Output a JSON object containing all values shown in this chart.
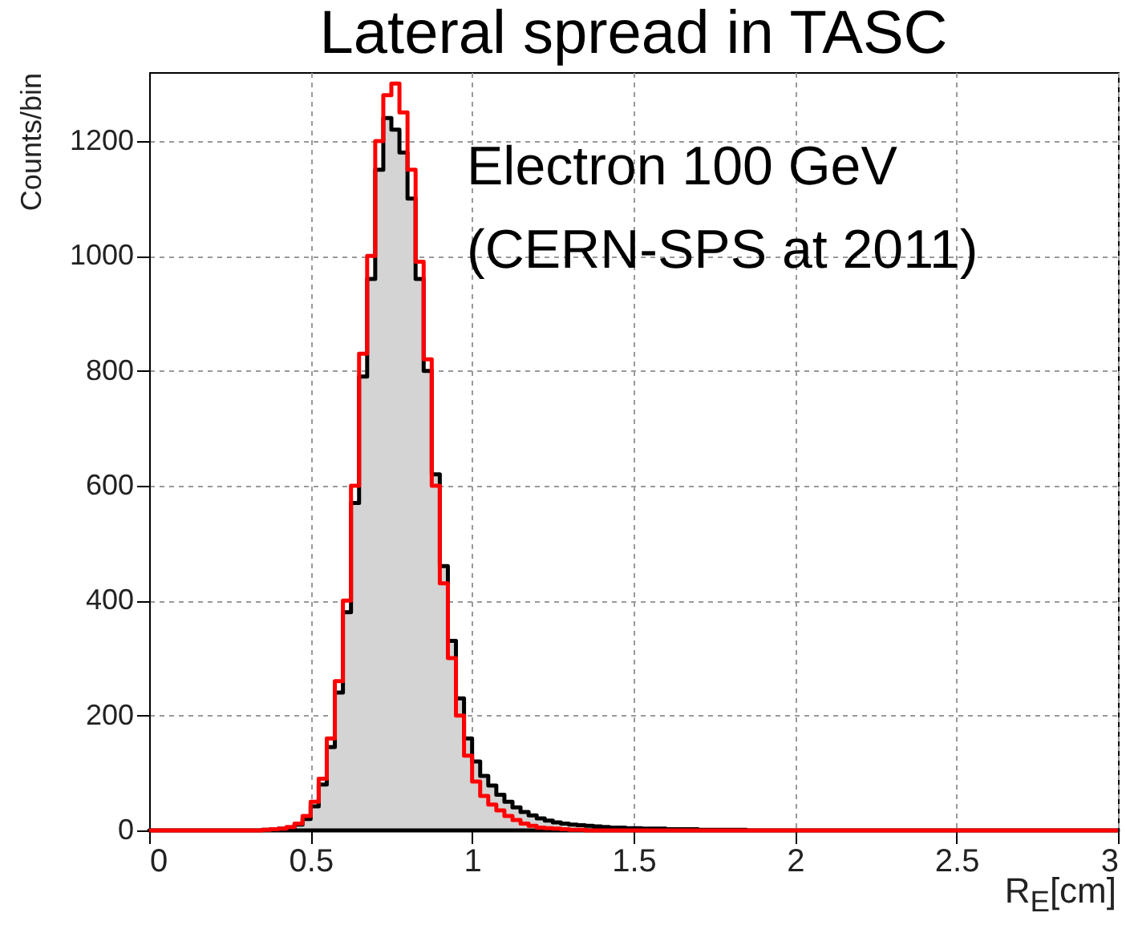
{
  "chart_data": {
    "type": "histogram",
    "title": "Lateral spread in TASC",
    "xlabel": "R$_{E}$[cm]",
    "ylabel": "Counts/bin",
    "annotations": [
      "Electron 100 GeV",
      "(CERN-SPS at 2011)"
    ],
    "bins": [
      0,
      0.025,
      0.05,
      0.075,
      0.1,
      0.125,
      0.15,
      0.175,
      0.2,
      0.225,
      0.25,
      0.275,
      0.3,
      0.325,
      0.35,
      0.375,
      0.4,
      0.425,
      0.45,
      0.475,
      0.5,
      0.525,
      0.55,
      0.575,
      0.6,
      0.625,
      0.65,
      0.675,
      0.7,
      0.725,
      0.75,
      0.775,
      0.8,
      0.825,
      0.85,
      0.875,
      0.9,
      0.925,
      0.95,
      0.975,
      1,
      1.025,
      1.05,
      1.075,
      1.1,
      1.125,
      1.15,
      1.175,
      1.2,
      1.225,
      1.25,
      1.275,
      1.3,
      1.325,
      1.35,
      1.375,
      1.4,
      1.425,
      1.45,
      1.475,
      1.5,
      1.525,
      1.55,
      1.575,
      1.6,
      1.625,
      1.65,
      1.675,
      1.7,
      1.725,
      1.75,
      1.775,
      1.8,
      1.825,
      1.85,
      1.875,
      1.9,
      1.925,
      1.95,
      1.975,
      2,
      2.025,
      2.05,
      2.075,
      2.1,
      2.125,
      2.15,
      2.175,
      2.2,
      2.225,
      2.25,
      2.275,
      2.3,
      2.325,
      2.35,
      2.375,
      2.4,
      2.425,
      2.45,
      2.475,
      2.5,
      2.525,
      2.55,
      2.575,
      2.6,
      2.625,
      2.65,
      2.675,
      2.7,
      2.725,
      2.75,
      2.775,
      2.8,
      2.825,
      2.85,
      2.875,
      2.9,
      2.925,
      2.95,
      2.975,
      3
    ],
    "series": [
      {
        "color": "#000000",
        "values": [
          0,
          0,
          0,
          0,
          0,
          0,
          0,
          0,
          0,
          0,
          0,
          0,
          0,
          0,
          1,
          2,
          3,
          5,
          10,
          20,
          42,
          80,
          145,
          240,
          380,
          570,
          790,
          960,
          1150,
          1240,
          1220,
          1180,
          1100,
          960,
          800,
          620,
          460,
          330,
          230,
          160,
          120,
          95,
          78,
          62,
          50,
          40,
          32,
          26,
          21,
          17,
          14,
          12,
          10,
          9,
          8,
          7,
          6,
          5,
          5,
          4,
          4,
          3,
          3,
          3,
          2,
          2,
          2,
          2,
          1,
          1,
          1,
          1,
          1,
          1,
          0,
          0,
          0,
          0,
          0,
          0,
          0,
          0,
          0,
          0,
          0,
          0,
          0,
          0,
          0,
          0,
          0,
          0,
          0,
          0,
          0,
          0,
          0,
          0,
          0,
          0,
          0,
          0,
          0,
          0,
          0,
          0,
          0,
          0,
          0,
          0,
          0,
          0,
          0,
          0,
          0,
          0,
          0,
          0,
          0,
          0
        ]
      },
      {
        "color": "#ff0000",
        "values": [
          0,
          0,
          0,
          0,
          0,
          0,
          0,
          0,
          0,
          0,
          0,
          0,
          0,
          0,
          1,
          2,
          3,
          6,
          12,
          25,
          50,
          90,
          160,
          260,
          400,
          600,
          830,
          1000,
          1200,
          1280,
          1300,
          1250,
          1150,
          990,
          820,
          600,
          430,
          300,
          200,
          130,
          85,
          60,
          45,
          35,
          25,
          18,
          12,
          8,
          5,
          4,
          3,
          2,
          1,
          1,
          0,
          0,
          0,
          0,
          0,
          0,
          0,
          0,
          0,
          0,
          0,
          0,
          0,
          0,
          0,
          0,
          0,
          0,
          0,
          0,
          0,
          0,
          0,
          0,
          0,
          0,
          0,
          0,
          0,
          0,
          0,
          0,
          0,
          0,
          0,
          0,
          0,
          0,
          0,
          0,
          0,
          0,
          0,
          0,
          0,
          0,
          0,
          0,
          0,
          0,
          0,
          0,
          0,
          0,
          0,
          0,
          0,
          0,
          0,
          0,
          0,
          0,
          0,
          0,
          0,
          0
        ]
      }
    ],
    "xlim": [
      0,
      3
    ],
    "xticks": [
      0,
      0.5,
      1,
      1.5,
      2,
      2.5,
      3
    ],
    "ylim": [
      0,
      1320
    ],
    "yticks": [
      0,
      200,
      400,
      600,
      800,
      1000,
      1200
    ],
    "grid": true
  }
}
